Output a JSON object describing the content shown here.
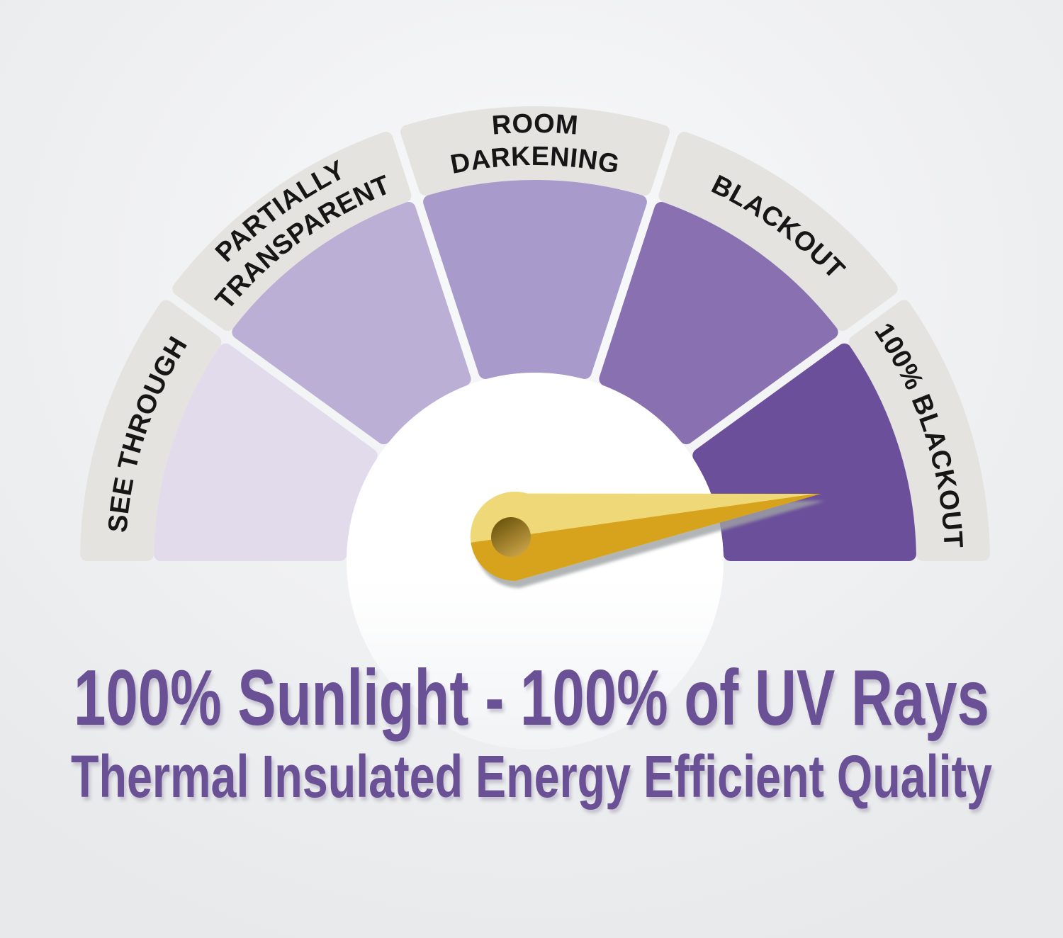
{
  "gauge": {
    "segments": [
      {
        "label": "SEE THROUGH",
        "lines": [
          "SEE THROUGH"
        ],
        "color": "#e1dbec"
      },
      {
        "label": "PARTIALLY TRANSPARENT",
        "lines": [
          "PARTIALLY",
          "TRANSPARENT"
        ],
        "color": "#bcafd6"
      },
      {
        "label": "ROOM DARKENING",
        "lines": [
          "ROOM",
          "DARKENING"
        ],
        "color": "#a89aca"
      },
      {
        "label": "BLACKOUT",
        "lines": [
          "BLACKOUT"
        ],
        "color": "#8971b1"
      },
      {
        "label": "100% BLACKOUT",
        "lines": [
          "100% BLACKOUT"
        ],
        "color": "#6b4f9a"
      }
    ],
    "band_color": "#e4e3e0",
    "label_color": "#161616",
    "hub_color": "#ffffff",
    "needle": {
      "points_to": "100% BLACKOUT",
      "color_top": "#eed878",
      "color_bottom": "#d8a31c",
      "hole_dark": "#6f570e",
      "hole_light": "#cda64a",
      "shadow_color": "#9fa3a5"
    }
  },
  "caption": {
    "line1": "100% Sunlight - 100% of UV Rays",
    "line2": "Thermal Insulated Energy Efficient Quality",
    "color": "#6a5095",
    "shadow_color": "#a09aae"
  },
  "background": {
    "center": "#f8f9fa",
    "mid": "#eff0f2",
    "edge": "#e7e9eb"
  }
}
